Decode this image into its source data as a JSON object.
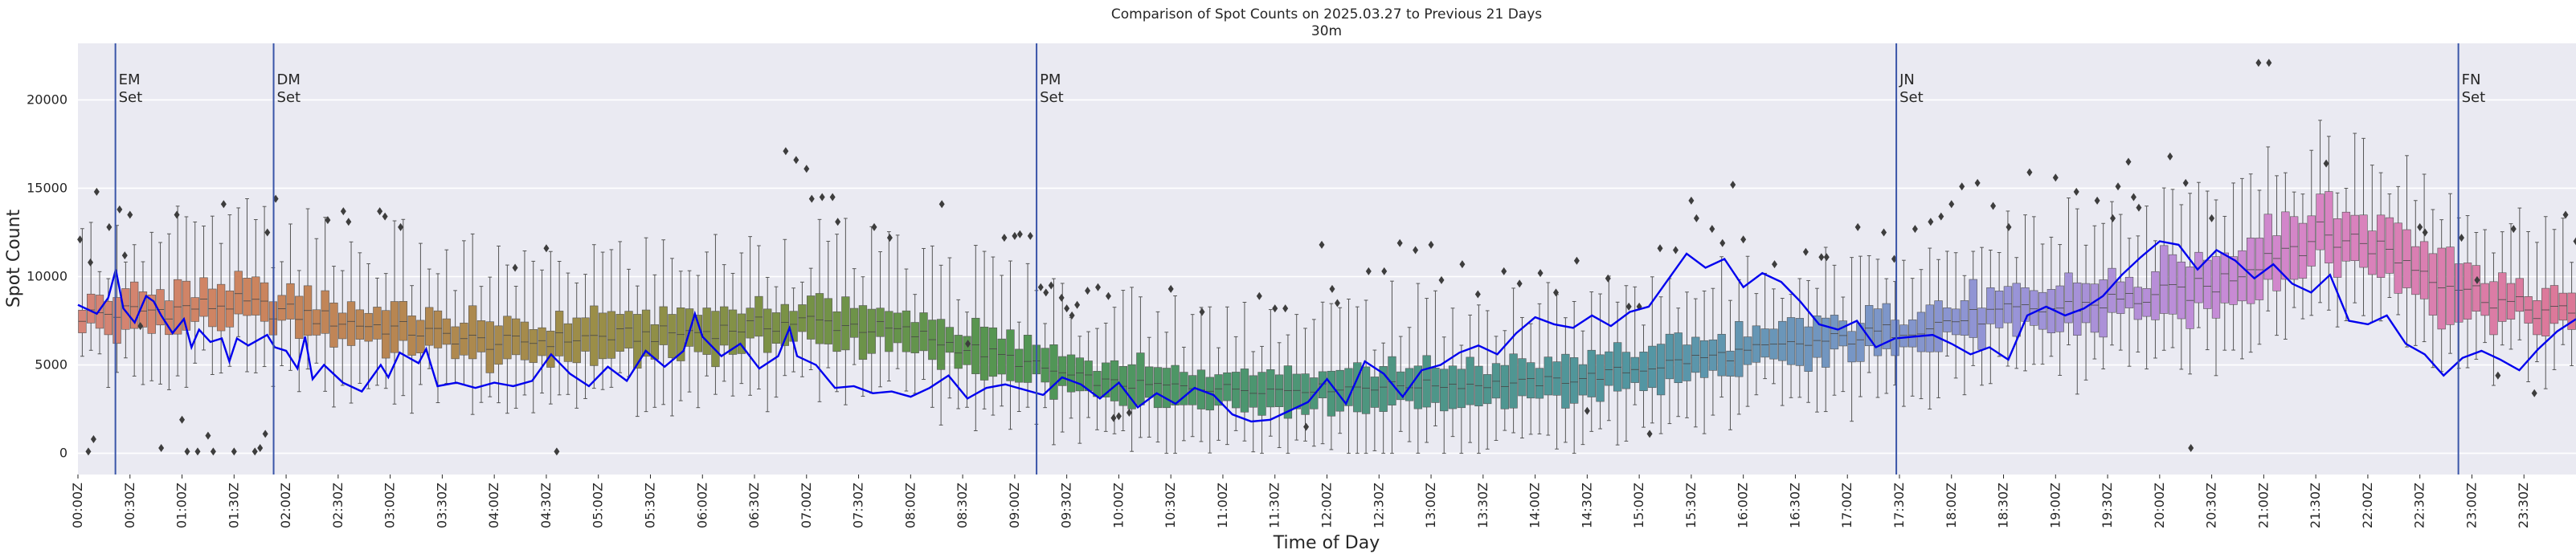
{
  "chart_data": {
    "type": "box",
    "title": "Comparison of Spot Counts on 2025.03.27 to Previous 21 Days",
    "subtitle": "30m",
    "xlabel": "Time of Day",
    "ylabel": "Spot Count",
    "ylim": [
      -1200,
      23200
    ],
    "yticks": [
      0,
      5000,
      10000,
      15000,
      20000
    ],
    "x_range_hours": [
      0,
      24
    ],
    "bins_per_hour": 12,
    "xtick_labels": [
      "00:00Z",
      "00:30Z",
      "01:00Z",
      "01:30Z",
      "02:00Z",
      "02:30Z",
      "03:00Z",
      "03:30Z",
      "04:00Z",
      "04:30Z",
      "05:00Z",
      "05:30Z",
      "06:00Z",
      "06:30Z",
      "07:00Z",
      "07:30Z",
      "08:00Z",
      "08:30Z",
      "09:00Z",
      "09:30Z",
      "10:00Z",
      "10:30Z",
      "11:00Z",
      "11:30Z",
      "12:00Z",
      "12:30Z",
      "13:00Z",
      "13:30Z",
      "14:00Z",
      "14:30Z",
      "15:00Z",
      "15:30Z",
      "16:00Z",
      "16:30Z",
      "17:00Z",
      "17:30Z",
      "18:00Z",
      "18:30Z",
      "19:00Z",
      "19:30Z",
      "20:00Z",
      "20:30Z",
      "21:00Z",
      "21:30Z",
      "22:00Z",
      "22:30Z",
      "23:00Z",
      "23:30Z"
    ],
    "median_profile": [
      [
        0,
        7800
      ],
      [
        0.5,
        8000
      ],
      [
        1,
        8200
      ],
      [
        1.5,
        8500
      ],
      [
        2,
        8000
      ],
      [
        2.5,
        7500
      ],
      [
        3,
        7100
      ],
      [
        3.5,
        6700
      ],
      [
        4,
        6200
      ],
      [
        4.5,
        6400
      ],
      [
        5,
        6600
      ],
      [
        5.5,
        6700
      ],
      [
        6,
        6900
      ],
      [
        6.5,
        7200
      ],
      [
        7,
        7500
      ],
      [
        7.5,
        7200
      ],
      [
        8,
        6800
      ],
      [
        8.5,
        6000
      ],
      [
        9,
        5300
      ],
      [
        9.5,
        4400
      ],
      [
        10,
        3900
      ],
      [
        10.5,
        3800
      ],
      [
        11,
        3700
      ],
      [
        11.5,
        3600
      ],
      [
        12,
        3700
      ],
      [
        12.5,
        3800
      ],
      [
        13,
        3900
      ],
      [
        13.5,
        3900
      ],
      [
        14,
        4000
      ],
      [
        14.5,
        4300
      ],
      [
        15,
        4800
      ],
      [
        15.5,
        5300
      ],
      [
        16,
        5700
      ],
      [
        16.5,
        6100
      ],
      [
        17,
        6500
      ],
      [
        17.5,
        7000
      ],
      [
        18,
        7500
      ],
      [
        18.5,
        7900
      ],
      [
        19,
        8200
      ],
      [
        19.5,
        8600
      ],
      [
        20,
        8900
      ],
      [
        20.5,
        9400
      ],
      [
        21,
        11200
      ],
      [
        21.5,
        12300
      ],
      [
        22,
        12000
      ],
      [
        22.5,
        10500
      ],
      [
        23,
        9200
      ],
      [
        23.5,
        8200
      ],
      [
        24,
        7800
      ]
    ],
    "today_series": {
      "name": "2025.03.27",
      "color": "#0000ee",
      "points": [
        [
          0,
          8400
        ],
        [
          0.25,
          7900
        ],
        [
          0.4,
          8800
        ],
        [
          0.5,
          10400
        ],
        [
          0.6,
          8200
        ],
        [
          0.75,
          7400
        ],
        [
          0.9,
          8900
        ],
        [
          1,
          8600
        ],
        [
          1.1,
          7800
        ],
        [
          1.25,
          6800
        ],
        [
          1.4,
          7600
        ],
        [
          1.5,
          6000
        ],
        [
          1.6,
          7000
        ],
        [
          1.75,
          6300
        ],
        [
          1.9,
          6500
        ],
        [
          2,
          5200
        ],
        [
          2.1,
          6500
        ],
        [
          2.25,
          6100
        ],
        [
          2.5,
          6700
        ],
        [
          2.6,
          6000
        ],
        [
          2.75,
          5800
        ],
        [
          2.9,
          4800
        ],
        [
          3,
          6600
        ],
        [
          3.1,
          4200
        ],
        [
          3.25,
          5000
        ],
        [
          3.5,
          4000
        ],
        [
          3.75,
          3500
        ],
        [
          4,
          5000
        ],
        [
          4.1,
          4300
        ],
        [
          4.25,
          5700
        ],
        [
          4.5,
          5100
        ],
        [
          4.6,
          5900
        ],
        [
          4.75,
          3800
        ],
        [
          5,
          4000
        ],
        [
          5.25,
          3700
        ],
        [
          5.5,
          4000
        ],
        [
          5.75,
          3800
        ],
        [
          6,
          4100
        ],
        [
          6.25,
          5600
        ],
        [
          6.5,
          4500
        ],
        [
          6.75,
          3800
        ],
        [
          7,
          4900
        ],
        [
          7.25,
          4100
        ],
        [
          7.5,
          5800
        ],
        [
          7.75,
          4900
        ],
        [
          8,
          5800
        ],
        [
          8.15,
          7900
        ],
        [
          8.25,
          6600
        ],
        [
          8.5,
          5500
        ],
        [
          8.75,
          6200
        ],
        [
          9,
          4800
        ],
        [
          9.25,
          5500
        ],
        [
          9.4,
          7100
        ],
        [
          9.5,
          5500
        ],
        [
          9.75,
          5000
        ],
        [
          10,
          3700
        ],
        [
          10.25,
          3800
        ],
        [
          10.5,
          3400
        ],
        [
          10.75,
          3500
        ],
        [
          11,
          3200
        ],
        [
          11.25,
          3700
        ],
        [
          11.5,
          4400
        ],
        [
          11.75,
          3100
        ],
        [
          12,
          3700
        ],
        [
          12.25,
          3900
        ],
        [
          12.5,
          3600
        ],
        [
          12.75,
          3300
        ],
        [
          13,
          4300
        ],
        [
          13.25,
          3900
        ],
        [
          13.5,
          3100
        ],
        [
          13.75,
          4000
        ],
        [
          14,
          2600
        ],
        [
          14.25,
          3400
        ],
        [
          14.5,
          2800
        ],
        [
          14.75,
          3700
        ],
        [
          15,
          3300
        ],
        [
          15.25,
          2200
        ],
        [
          15.5,
          1800
        ],
        [
          15.75,
          1900
        ],
        [
          16,
          2400
        ],
        [
          16.25,
          2900
        ],
        [
          16.5,
          4200
        ],
        [
          16.75,
          2800
        ],
        [
          17,
          5200
        ],
        [
          17.25,
          4500
        ],
        [
          17.5,
          3200
        ],
        [
          17.75,
          4700
        ],
        [
          18,
          5000
        ],
        [
          18.25,
          5700
        ],
        [
          18.5,
          6100
        ],
        [
          18.75,
          5600
        ],
        [
          19,
          6800
        ],
        [
          19.25,
          7700
        ],
        [
          19.5,
          7300
        ],
        [
          19.75,
          7100
        ],
        [
          20,
          7800
        ],
        [
          20.25,
          7200
        ],
        [
          20.5,
          8000
        ],
        [
          20.75,
          8300
        ],
        [
          21,
          9800
        ],
        [
          21.25,
          11300
        ],
        [
          21.5,
          10500
        ],
        [
          21.75,
          11000
        ],
        [
          22,
          9400
        ],
        [
          22.25,
          10200
        ],
        [
          22.5,
          9700
        ],
        [
          22.75,
          8600
        ],
        [
          23,
          7300
        ],
        [
          23.25,
          7000
        ],
        [
          23.5,
          7500
        ],
        [
          23.75,
          6000
        ],
        [
          24,
          6500
        ],
        [
          24.25,
          6600
        ],
        [
          24.5,
          6700
        ],
        [
          24.75,
          6200
        ],
        [
          25,
          5600
        ],
        [
          25.25,
          6000
        ],
        [
          25.5,
          5300
        ],
        [
          25.75,
          7800
        ],
        [
          26,
          8300
        ],
        [
          26.25,
          7800
        ],
        [
          26.5,
          8200
        ],
        [
          26.75,
          8900
        ],
        [
          27,
          10100
        ],
        [
          27.25,
          11100
        ],
        [
          27.5,
          12000
        ],
        [
          27.75,
          11800
        ],
        [
          28,
          10400
        ],
        [
          28.25,
          11500
        ],
        [
          28.5,
          10900
        ],
        [
          28.75,
          9900
        ],
        [
          29,
          10700
        ],
        [
          29.25,
          9600
        ],
        [
          29.5,
          9100
        ],
        [
          29.75,
          10100
        ],
        [
          30,
          7500
        ],
        [
          30.25,
          7300
        ],
        [
          30.5,
          7800
        ],
        [
          30.75,
          6200
        ],
        [
          31,
          5600
        ],
        [
          31.25,
          4400
        ],
        [
          31.5,
          5400
        ],
        [
          31.75,
          5800
        ],
        [
          32,
          5300
        ],
        [
          32.25,
          4700
        ],
        [
          32.5,
          5900
        ],
        [
          32.75,
          6900
        ],
        [
          33,
          7600
        ]
      ],
      "x_scale": 0.7273
    },
    "events": [
      {
        "label": "EM\nSet",
        "x_label": "00:22Z",
        "hour": 0.36
      },
      {
        "label": "DM\nSet",
        "x_label": "01:53Z",
        "hour": 1.88
      },
      {
        "label": "PM\nSet",
        "x_label": "09:13Z",
        "hour": 9.21
      },
      {
        "label": "JN\nSet",
        "x_label": "17:28Z",
        "hour": 17.47
      },
      {
        "label": "FN\nSet",
        "x_label": "22:52Z",
        "hour": 22.87
      }
    ],
    "outliers": [
      [
        0.02,
        12100
      ],
      [
        0.1,
        100
      ],
      [
        0.15,
        800
      ],
      [
        0.18,
        14800
      ],
      [
        0.12,
        10800
      ],
      [
        0.3,
        12800
      ],
      [
        0.4,
        13800
      ],
      [
        0.45,
        11200
      ],
      [
        0.5,
        13500
      ],
      [
        0.6,
        7200
      ],
      [
        0.8,
        300
      ],
      [
        0.95,
        13500
      ],
      [
        1.0,
        1900
      ],
      [
        1.05,
        100
      ],
      [
        1.15,
        100
      ],
      [
        1.25,
        1000
      ],
      [
        1.3,
        100
      ],
      [
        1.4,
        14100
      ],
      [
        1.5,
        100
      ],
      [
        1.7,
        100
      ],
      [
        1.75,
        300
      ],
      [
        1.8,
        1100
      ],
      [
        1.82,
        12500
      ],
      [
        1.9,
        14400
      ],
      [
        2.4,
        13200
      ],
      [
        2.55,
        13700
      ],
      [
        2.6,
        13100
      ],
      [
        2.9,
        13700
      ],
      [
        2.95,
        13400
      ],
      [
        3.1,
        12800
      ],
      [
        4.2,
        10500
      ],
      [
        4.5,
        11600
      ],
      [
        4.6,
        100
      ],
      [
        6.8,
        17100
      ],
      [
        6.9,
        16600
      ],
      [
        7.0,
        16100
      ],
      [
        7.05,
        14400
      ],
      [
        7.15,
        14500
      ],
      [
        7.25,
        14500
      ],
      [
        7.3,
        13100
      ],
      [
        7.65,
        12800
      ],
      [
        7.8,
        12200
      ],
      [
        8.3,
        14100
      ],
      [
        8.55,
        6200
      ],
      [
        8.9,
        12200
      ],
      [
        9.0,
        12300
      ],
      [
        9.05,
        12400
      ],
      [
        9.15,
        12300
      ],
      [
        9.25,
        9400
      ],
      [
        9.3,
        9100
      ],
      [
        9.35,
        9500
      ],
      [
        9.45,
        8800
      ],
      [
        9.5,
        8200
      ],
      [
        9.55,
        7800
      ],
      [
        9.6,
        8400
      ],
      [
        9.7,
        9200
      ],
      [
        9.8,
        9400
      ],
      [
        9.9,
        8900
      ],
      [
        9.95,
        2000
      ],
      [
        10.0,
        2100
      ],
      [
        10.1,
        2300
      ],
      [
        10.5,
        9300
      ],
      [
        10.8,
        8000
      ],
      [
        11.35,
        8900
      ],
      [
        11.5,
        8200
      ],
      [
        11.6,
        8200
      ],
      [
        11.8,
        1500
      ],
      [
        11.95,
        11800
      ],
      [
        12.05,
        9300
      ],
      [
        12.1,
        8500
      ],
      [
        12.4,
        10300
      ],
      [
        12.55,
        10300
      ],
      [
        12.7,
        11900
      ],
      [
        12.85,
        11500
      ],
      [
        13.0,
        11800
      ],
      [
        13.1,
        9800
      ],
      [
        13.3,
        10700
      ],
      [
        13.45,
        9000
      ],
      [
        13.7,
        10300
      ],
      [
        13.85,
        9600
      ],
      [
        14.05,
        10200
      ],
      [
        14.2,
        9100
      ],
      [
        14.4,
        10900
      ],
      [
        14.5,
        2400
      ],
      [
        14.7,
        9900
      ],
      [
        14.9,
        8300
      ],
      [
        15.0,
        8300
      ],
      [
        15.1,
        1100
      ],
      [
        15.2,
        11600
      ],
      [
        15.35,
        11500
      ],
      [
        15.5,
        14300
      ],
      [
        15.55,
        13300
      ],
      [
        15.7,
        12700
      ],
      [
        15.8,
        11900
      ],
      [
        15.9,
        15200
      ],
      [
        16.0,
        12100
      ],
      [
        16.3,
        10700
      ],
      [
        16.6,
        11400
      ],
      [
        16.75,
        11100
      ],
      [
        16.8,
        11100
      ],
      [
        17.1,
        12800
      ],
      [
        17.35,
        12500
      ],
      [
        17.45,
        11000
      ],
      [
        17.65,
        12700
      ],
      [
        17.8,
        13100
      ],
      [
        17.9,
        13400
      ],
      [
        18.0,
        14100
      ],
      [
        18.1,
        15100
      ],
      [
        18.25,
        15300
      ],
      [
        18.4,
        14000
      ],
      [
        18.55,
        12800
      ],
      [
        18.75,
        15900
      ],
      [
        19.0,
        15600
      ],
      [
        19.2,
        14800
      ],
      [
        19.4,
        14300
      ],
      [
        19.55,
        13300
      ],
      [
        19.6,
        15100
      ],
      [
        19.7,
        16500
      ],
      [
        19.75,
        14500
      ],
      [
        19.8,
        13900
      ],
      [
        20.1,
        16800
      ],
      [
        20.25,
        15300
      ],
      [
        20.3,
        300
      ],
      [
        20.5,
        13300
      ],
      [
        20.95,
        22100
      ],
      [
        21.05,
        22100
      ],
      [
        21.6,
        16400
      ],
      [
        22.5,
        12800
      ],
      [
        22.55,
        12500
      ],
      [
        22.9,
        12200
      ],
      [
        23.05,
        9800
      ],
      [
        23.25,
        4400
      ],
      [
        23.4,
        12700
      ],
      [
        23.6,
        3400
      ],
      [
        23.9,
        13500
      ],
      [
        24.0,
        12000
      ]
    ]
  }
}
